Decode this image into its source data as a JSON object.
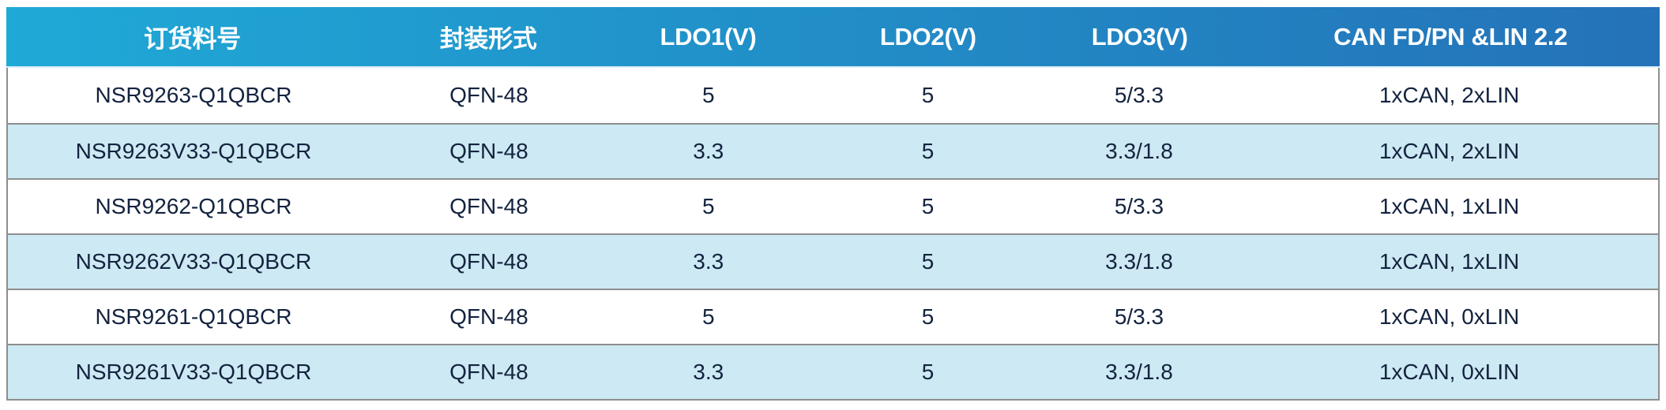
{
  "theme": {
    "header_gradient_start": "#1FA9D7",
    "header_gradient_end": "#2472B8",
    "header_text_color": "#FFFFFF",
    "row_white": "#FFFFFF",
    "row_alt": "#CDE9F3",
    "body_text_color": "#13233F",
    "border_color": "#8E8E8E",
    "header_underline_color": "#D9EEF6"
  },
  "table": {
    "columns": [
      {
        "id": "part_number",
        "label": "订货料号"
      },
      {
        "id": "package",
        "label": "封装形式"
      },
      {
        "id": "ldo1",
        "label": "LDO1(V)"
      },
      {
        "id": "ldo2",
        "label": "LDO2(V)"
      },
      {
        "id": "ldo3",
        "label": "LDO3(V)"
      },
      {
        "id": "can_lin",
        "label": "CAN FD/PN &LIN 2.2"
      }
    ],
    "rows": [
      {
        "part_number": "NSR9263-Q1QBCR",
        "package": "QFN-48",
        "ldo1": "5",
        "ldo2": "5",
        "ldo3": "5/3.3",
        "can_lin": "1xCAN, 2xLIN"
      },
      {
        "part_number": "NSR9263V33-Q1QBCR",
        "package": "QFN-48",
        "ldo1": "3.3",
        "ldo2": "5",
        "ldo3": "3.3/1.8",
        "can_lin": "1xCAN, 2xLIN"
      },
      {
        "part_number": "NSR9262-Q1QBCR",
        "package": "QFN-48",
        "ldo1": "5",
        "ldo2": "5",
        "ldo3": "5/3.3",
        "can_lin": "1xCAN, 1xLIN"
      },
      {
        "part_number": "NSR9262V33-Q1QBCR",
        "package": "QFN-48",
        "ldo1": "3.3",
        "ldo2": "5",
        "ldo3": "3.3/1.8",
        "can_lin": "1xCAN, 1xLIN"
      },
      {
        "part_number": "NSR9261-Q1QBCR",
        "package": "QFN-48",
        "ldo1": "5",
        "ldo2": "5",
        "ldo3": "5/3.3",
        "can_lin": "1xCAN, 0xLIN"
      },
      {
        "part_number": "NSR9261V33-Q1QBCR",
        "package": "QFN-48",
        "ldo1": "3.3",
        "ldo2": "5",
        "ldo3": "3.3/1.8",
        "can_lin": "1xCAN, 0xLIN"
      }
    ]
  }
}
